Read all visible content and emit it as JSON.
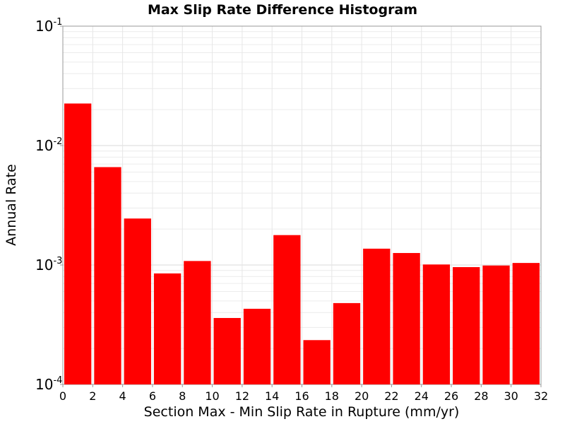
{
  "chart_data": {
    "type": "bar",
    "title": "Max Slip Rate Difference Histogram",
    "xlabel": "Section Max - Min Slip Rate in Rupture (mm/yr)",
    "ylabel": "Annual Rate",
    "xlim": [
      0,
      32
    ],
    "ylim": [
      0.0001,
      0.1
    ],
    "yscale": "log",
    "grid": true,
    "bar_width": 2,
    "bar_color": "#ff0000",
    "x_ticks": [
      "0",
      "2",
      "4",
      "6",
      "8",
      "10",
      "12",
      "14",
      "16",
      "18",
      "20",
      "22",
      "24",
      "26",
      "28",
      "30",
      "32"
    ],
    "y_ticks": [
      {
        "base": "10",
        "exp": "-1"
      },
      {
        "base": "10",
        "exp": "-2"
      },
      {
        "base": "10",
        "exp": "-3"
      },
      {
        "base": "10",
        "exp": "-4"
      }
    ],
    "bins": [
      {
        "x": 1,
        "value": 0.0225
      },
      {
        "x": 3,
        "value": 0.0066
      },
      {
        "x": 5,
        "value": 0.00245
      },
      {
        "x": 7,
        "value": 0.00085
      },
      {
        "x": 9,
        "value": 0.00108
      },
      {
        "x": 11,
        "value": 0.00036
      },
      {
        "x": 13,
        "value": 0.00043
      },
      {
        "x": 15,
        "value": 0.00178
      },
      {
        "x": 17,
        "value": 0.000235
      },
      {
        "x": 19,
        "value": 0.00048
      },
      {
        "x": 21,
        "value": 0.00137
      },
      {
        "x": 23,
        "value": 0.00126
      },
      {
        "x": 25,
        "value": 0.00101
      },
      {
        "x": 27,
        "value": 0.00096
      },
      {
        "x": 29,
        "value": 0.00099
      },
      {
        "x": 31,
        "value": 0.00104
      }
    ]
  }
}
